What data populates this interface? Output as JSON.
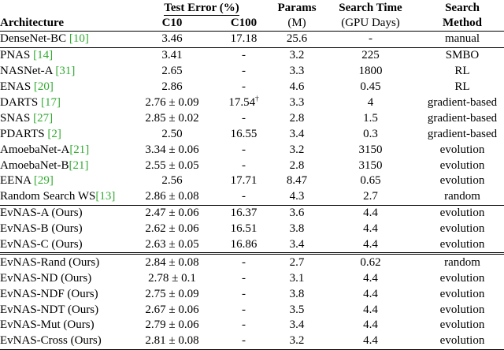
{
  "header": {
    "architecture": "Architecture",
    "test_error": "Test Error (%)",
    "c10": "C10",
    "c100": "C100",
    "params": "Params",
    "params_unit": "(M)",
    "search_time": "Search Time",
    "search_time_unit": "(GPU Days)",
    "search_method_line1": "Search",
    "search_method_line2": "Method"
  },
  "groups": [
    {
      "rows": [
        {
          "name": "DenseNet-BC ",
          "cite": "[10]",
          "c10": "3.46",
          "c100": "17.18",
          "params": "25.6",
          "time": "-",
          "method": "manual"
        }
      ]
    },
    {
      "rows": [
        {
          "name": "PNAS ",
          "cite": "[14]",
          "c10": "3.41",
          "c100": "-",
          "params": "3.2",
          "time": "225",
          "method": "SMBO"
        },
        {
          "name": "NASNet-A ",
          "cite": "[31]",
          "c10": "2.65",
          "c100": "-",
          "params": "3.3",
          "time": "1800",
          "method": "RL"
        },
        {
          "name": "ENAS ",
          "cite": "[20]",
          "c10": "2.86",
          "c100": "-",
          "params": "4.6",
          "time": "0.45",
          "method": "RL"
        },
        {
          "name": "DARTS ",
          "cite": "[17]",
          "c10": "2.76 ± 0.09",
          "c100": "17.54",
          "c100_sup": "†",
          "params": "3.3",
          "time": "4",
          "method": "gradient-based"
        },
        {
          "name": "SNAS ",
          "cite": "[27]",
          "c10": "2.85 ± 0.02",
          "c100": "-",
          "params": "2.8",
          "time": "1.5",
          "method": "gradient-based"
        },
        {
          "name": "PDARTS ",
          "cite": "[2]",
          "c10": "2.50",
          "c100": "16.55",
          "params": "3.4",
          "time": "0.3",
          "method": "gradient-based"
        },
        {
          "name": "AmoebaNet-A",
          "cite": "[21]",
          "c10": "3.34 ± 0.06",
          "c100": "-",
          "params": "3.2",
          "time": "3150",
          "method": "evolution"
        },
        {
          "name": "AmoebaNet-B",
          "cite": "[21]",
          "c10": "2.55 ± 0.05",
          "c100": "-",
          "params": "2.8",
          "time": "3150",
          "method": "evolution"
        },
        {
          "name": "EENA ",
          "cite": "[29]",
          "c10": "2.56",
          "c100": "17.71",
          "params": "8.47",
          "time": "0.65",
          "method": "evolution"
        },
        {
          "name": "Random Search WS",
          "cite": "[13]",
          "c10": "2.86 ± 0.08",
          "c100": "-",
          "params": "4.3",
          "time": "2.7",
          "method": "random"
        }
      ]
    },
    {
      "rows": [
        {
          "name": "EvNAS-A (Ours)",
          "cite": "",
          "c10": "2.47 ± 0.06",
          "c100": "16.37",
          "params": "3.6",
          "time": "4.4",
          "method": "evolution"
        },
        {
          "name": "EvNAS-B (Ours)",
          "cite": "",
          "c10": "2.62 ± 0.06",
          "c100": "16.51",
          "params": "3.8",
          "time": "4.4",
          "method": "evolution"
        },
        {
          "name": "EvNAS-C (Ours)",
          "cite": "",
          "c10": "2.63 ± 0.05",
          "c100": "16.86",
          "params": "3.4",
          "time": "4.4",
          "method": "evolution"
        }
      ]
    },
    {
      "rows": [
        {
          "name": "EvNAS-Rand (Ours)",
          "cite": "",
          "c10": "2.84 ± 0.08",
          "c100": "-",
          "params": "2.7",
          "time": "0.62",
          "method": "random"
        },
        {
          "name": "EvNAS-ND (Ours)",
          "cite": "",
          "c10": "2.78 ± 0.1",
          "c100": "-",
          "params": "3.1",
          "time": "4.4",
          "method": "evolution"
        },
        {
          "name": "EvNAS-NDF (Ours)",
          "cite": "",
          "c10": "2.75 ± 0.09",
          "c100": "-",
          "params": "3.8",
          "time": "4.4",
          "method": "evolution"
        },
        {
          "name": "EvNAS-NDT (Ours)",
          "cite": "",
          "c10": "2.67 ± 0.06",
          "c100": "-",
          "params": "3.5",
          "time": "4.4",
          "method": "evolution"
        },
        {
          "name": "EvNAS-Mut (Ours)",
          "cite": "",
          "c10": "2.79 ± 0.06",
          "c100": "-",
          "params": "3.4",
          "time": "4.4",
          "method": "evolution"
        },
        {
          "name": "EvNAS-Cross (Ours)",
          "cite": "",
          "c10": "2.81 ± 0.08",
          "c100": "-",
          "params": "3.2",
          "time": "4.4",
          "method": "evolution"
        }
      ]
    }
  ],
  "colors": {
    "citation": "#33aa33",
    "text": "#000000",
    "background": "#ffffff"
  }
}
